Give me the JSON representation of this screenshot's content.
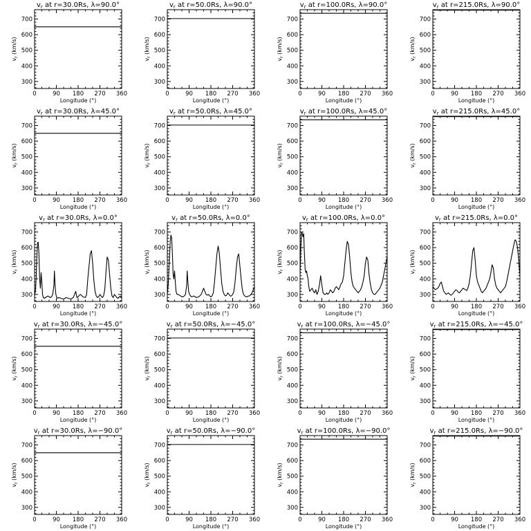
{
  "chart_data": {
    "type": "line",
    "x_label": "Longitude (°)",
    "y_label": "v",
    "y_label_subscript": "r",
    "y_label_unit": " (km/s)",
    "x_ticks": [
      0,
      90,
      180,
      270,
      360
    ],
    "y_ticks": [
      300,
      400,
      500,
      600,
      700
    ],
    "xlim": [
      0,
      360
    ],
    "ylim": [
      255,
      760
    ],
    "grid": false,
    "legend": "none",
    "line_color": "#000000",
    "radii": [
      "30.0",
      "50.0",
      "100.0",
      "215.0"
    ],
    "latitudes": [
      "90.0",
      "45.0",
      "0.0",
      "−45.0",
      "−90.0"
    ],
    "panels": [
      {
        "title": "v_r at r=30.0Rs, λ=90.0°",
        "r": "30.0",
        "lat": "90.0",
        "constant": 650
      },
      {
        "title": "v_r at r=50.0Rs, λ=90.0°",
        "r": "50.0",
        "lat": "90.0",
        "constant": 703
      },
      {
        "title": "v_r at r=100.0Rs, λ=90.0°",
        "r": "100.0",
        "lat": "90.0",
        "constant": 737
      },
      {
        "title": "v_r at r=215.0Rs, λ=90.0°",
        "r": "215.0",
        "lat": "90.0",
        "constant": 757
      },
      {
        "title": "v_r at r=30.0Rs, λ=45.0°",
        "r": "30.0",
        "lat": "45.0",
        "constant": 650
      },
      {
        "title": "v_r at r=50.0Rs, λ=45.0°",
        "r": "50.0",
        "lat": "45.0",
        "constant": 703
      },
      {
        "title": "v_r at r=100.0Rs, λ=45.0°",
        "r": "100.0",
        "lat": "45.0",
        "constant": 737
      },
      {
        "title": "v_r at r=215.0Rs, λ=45.0°",
        "r": "215.0",
        "lat": "45.0",
        "constant": 757
      },
      {
        "title": "v_r at r=30.0Rs, λ=0.0°",
        "r": "30.0",
        "lat": "0.0",
        "x": [
          0,
          4,
          7,
          10,
          12,
          15,
          18,
          21,
          24,
          27,
          30,
          33,
          36,
          40,
          45,
          50,
          55,
          60,
          65,
          70,
          75,
          80,
          82,
          85,
          88,
          92,
          96,
          100,
          110,
          120,
          130,
          140,
          150,
          160,
          165,
          170,
          175,
          180,
          185,
          190,
          200,
          210,
          215,
          220,
          225,
          230,
          235,
          240,
          245,
          250,
          255,
          260,
          265,
          270,
          275,
          280,
          285,
          290,
          295,
          300,
          305,
          310,
          315,
          320,
          325,
          330,
          335,
          340,
          345,
          350,
          355,
          360
        ],
        "y": [
          290,
          330,
          420,
          560,
          630,
          635,
          560,
          400,
          340,
          440,
          380,
          300,
          280,
          275,
          280,
          285,
          290,
          285,
          280,
          285,
          300,
          360,
          450,
          350,
          300,
          280,
          275,
          280,
          275,
          270,
          280,
          275,
          270,
          280,
          300,
          320,
          280,
          285,
          295,
          300,
          285,
          280,
          300,
          400,
          480,
          560,
          580,
          500,
          390,
          320,
          290,
          280,
          285,
          300,
          290,
          280,
          290,
          330,
          440,
          540,
          520,
          430,
          340,
          290,
          280,
          300,
          290,
          280,
          275,
          285,
          290,
          280
        ]
      },
      {
        "title": "v_r at r=50.0Rs, λ=0.0°",
        "r": "50.0",
        "lat": "0.0",
        "x": [
          0,
          4,
          8,
          12,
          15,
          18,
          21,
          24,
          27,
          30,
          33,
          36,
          40,
          45,
          50,
          55,
          60,
          65,
          70,
          75,
          80,
          82,
          85,
          88,
          92,
          96,
          100,
          110,
          120,
          130,
          140,
          145,
          150,
          155,
          160,
          165,
          170,
          175,
          180,
          185,
          190,
          195,
          200,
          205,
          210,
          215,
          220,
          225,
          230,
          235,
          240,
          245,
          250,
          255,
          260,
          265,
          270,
          275,
          280,
          285,
          290,
          295,
          300,
          305,
          310,
          315,
          320,
          325,
          330,
          335,
          340,
          345,
          350,
          355,
          360
        ],
        "y": [
          300,
          370,
          500,
          640,
          680,
          660,
          560,
          430,
          400,
          450,
          380,
          320,
          300,
          300,
          295,
          290,
          285,
          285,
          290,
          300,
          360,
          450,
          380,
          320,
          300,
          290,
          285,
          290,
          280,
          285,
          300,
          320,
          340,
          320,
          300,
          295,
          300,
          290,
          285,
          290,
          310,
          380,
          470,
          560,
          610,
          560,
          460,
          370,
          320,
          300,
          290,
          295,
          310,
          300,
          290,
          290,
          300,
          320,
          380,
          470,
          540,
          560,
          480,
          400,
          330,
          300,
          290,
          285,
          285,
          290,
          290,
          300,
          310,
          330,
          350
        ]
      },
      {
        "title": "v_r at r=100.0Rs, λ=0.0°",
        "r": "100.0",
        "lat": "0.0",
        "x": [
          0,
          3,
          6,
          9,
          12,
          15,
          18,
          21,
          24,
          27,
          30,
          33,
          36,
          40,
          45,
          50,
          55,
          60,
          65,
          70,
          75,
          80,
          85,
          90,
          95,
          100,
          105,
          110,
          115,
          120,
          125,
          130,
          135,
          140,
          145,
          150,
          155,
          160,
          165,
          170,
          175,
          180,
          185,
          190,
          195,
          200,
          205,
          210,
          215,
          220,
          225,
          230,
          235,
          240,
          245,
          250,
          255,
          260,
          265,
          270,
          275,
          280,
          285,
          290,
          295,
          300,
          305,
          310,
          315,
          320,
          325,
          330,
          335,
          340,
          345,
          350,
          355,
          360
        ],
        "y": [
          430,
          600,
          700,
          690,
          670,
          690,
          560,
          460,
          440,
          450,
          420,
          400,
          350,
          320,
          330,
          340,
          320,
          310,
          330,
          300,
          320,
          360,
          420,
          360,
          310,
          300,
          300,
          310,
          300,
          310,
          330,
          320,
          310,
          320,
          340,
          350,
          340,
          330,
          350,
          370,
          380,
          420,
          500,
          580,
          640,
          620,
          540,
          440,
          380,
          350,
          340,
          330,
          320,
          310,
          320,
          330,
          350,
          380,
          420,
          500,
          540,
          520,
          430,
          370,
          330,
          310,
          300,
          300,
          310,
          320,
          330,
          340,
          360,
          380,
          420,
          460,
          500,
          540
        ]
      },
      {
        "title": "v_r at r=215.0Rs, λ=0.0°",
        "r": "215.0",
        "lat": "0.0",
        "x": [
          0,
          5,
          10,
          15,
          20,
          25,
          30,
          35,
          40,
          45,
          50,
          55,
          60,
          65,
          70,
          75,
          80,
          85,
          90,
          95,
          100,
          105,
          110,
          115,
          120,
          125,
          130,
          135,
          140,
          145,
          150,
          155,
          160,
          165,
          170,
          175,
          180,
          185,
          190,
          195,
          200,
          205,
          210,
          215,
          220,
          225,
          230,
          235,
          240,
          245,
          250,
          255,
          260,
          265,
          270,
          275,
          280,
          285,
          290,
          295,
          300,
          305,
          310,
          315,
          320,
          325,
          330,
          335,
          340,
          345,
          350,
          355,
          360
        ],
        "y": [
          350,
          340,
          330,
          335,
          340,
          350,
          370,
          380,
          350,
          320,
          310,
          300,
          305,
          310,
          300,
          295,
          300,
          310,
          320,
          330,
          325,
          315,
          310,
          320,
          330,
          340,
          335,
          330,
          325,
          340,
          370,
          420,
          500,
          580,
          600,
          520,
          420,
          380,
          360,
          340,
          320,
          310,
          320,
          330,
          340,
          360,
          380,
          400,
          440,
          490,
          470,
          400,
          360,
          340,
          330,
          320,
          310,
          320,
          330,
          340,
          350,
          380,
          420,
          460,
          500,
          540,
          580,
          620,
          650,
          640,
          600,
          520,
          420
        ]
      },
      {
        "title": "v_r at r=30.0Rs, λ=−45.0°",
        "r": "30.0",
        "lat": "−45.0",
        "constant": 650
      },
      {
        "title": "v_r at r=50.0Rs, λ=−45.0°",
        "r": "50.0",
        "lat": "−45.0",
        "constant": 703
      },
      {
        "title": "v_r at r=100.0Rs, λ=−45.0°",
        "r": "100.0",
        "lat": "−45.0",
        "constant": 737
      },
      {
        "title": "v_r at r=215.0Rs, λ=−45.0°",
        "r": "215.0",
        "lat": "−45.0",
        "constant": 757
      },
      {
        "title": "v_r at r=30.0Rs, λ=−90.0°",
        "r": "30.0",
        "lat": "−90.0",
        "constant": 650
      },
      {
        "title": "v_r at r=50.0Rs, λ=−90.0°",
        "r": "50.0",
        "lat": "−90.0",
        "constant": 703
      },
      {
        "title": "v_r at r=100.0Rs, λ=−90.0°",
        "r": "100.0",
        "lat": "−90.0",
        "constant": 737
      },
      {
        "title": "v_r at r=215.0Rs, λ=−90.0°",
        "r": "215.0",
        "lat": "−90.0",
        "constant": 757
      }
    ]
  }
}
